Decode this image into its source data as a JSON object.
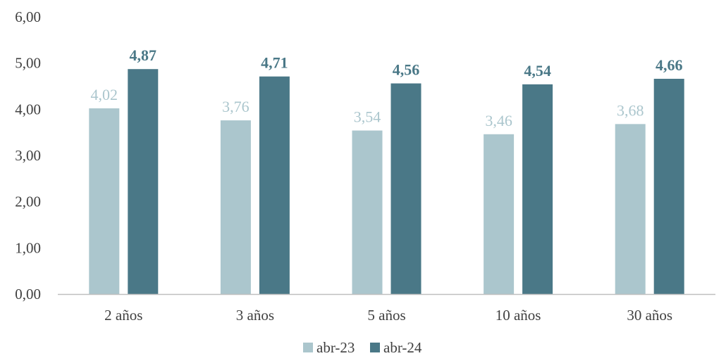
{
  "chart_data": {
    "type": "bar",
    "categories": [
      "2 años",
      "3 años",
      "5 años",
      "10 años",
      "30 años"
    ],
    "series": [
      {
        "name": "abr-23",
        "values": [
          4.02,
          3.76,
          3.54,
          3.46,
          3.68
        ],
        "value_labels": [
          "4,02",
          "3,76",
          "3,54",
          "3,46",
          "3,68"
        ],
        "color": "#abc6cd"
      },
      {
        "name": "abr-24",
        "values": [
          4.87,
          4.71,
          4.56,
          4.54,
          4.66
        ],
        "value_labels": [
          "4,87",
          "4,71",
          "4,56",
          "4,54",
          "4,66"
        ],
        "color": "#4a7887"
      }
    ],
    "ylim": [
      0,
      6
    ],
    "yticks": [
      0,
      1,
      2,
      3,
      4,
      5,
      6
    ],
    "ytick_labels": [
      "0,00",
      "1,00",
      "2,00",
      "3,00",
      "4,00",
      "5,00",
      "6,00"
    ],
    "title": "",
    "xlabel": "",
    "ylabel": "",
    "grid": false,
    "legend_position": "bottom",
    "axis_color": "#bfbfbf"
  }
}
